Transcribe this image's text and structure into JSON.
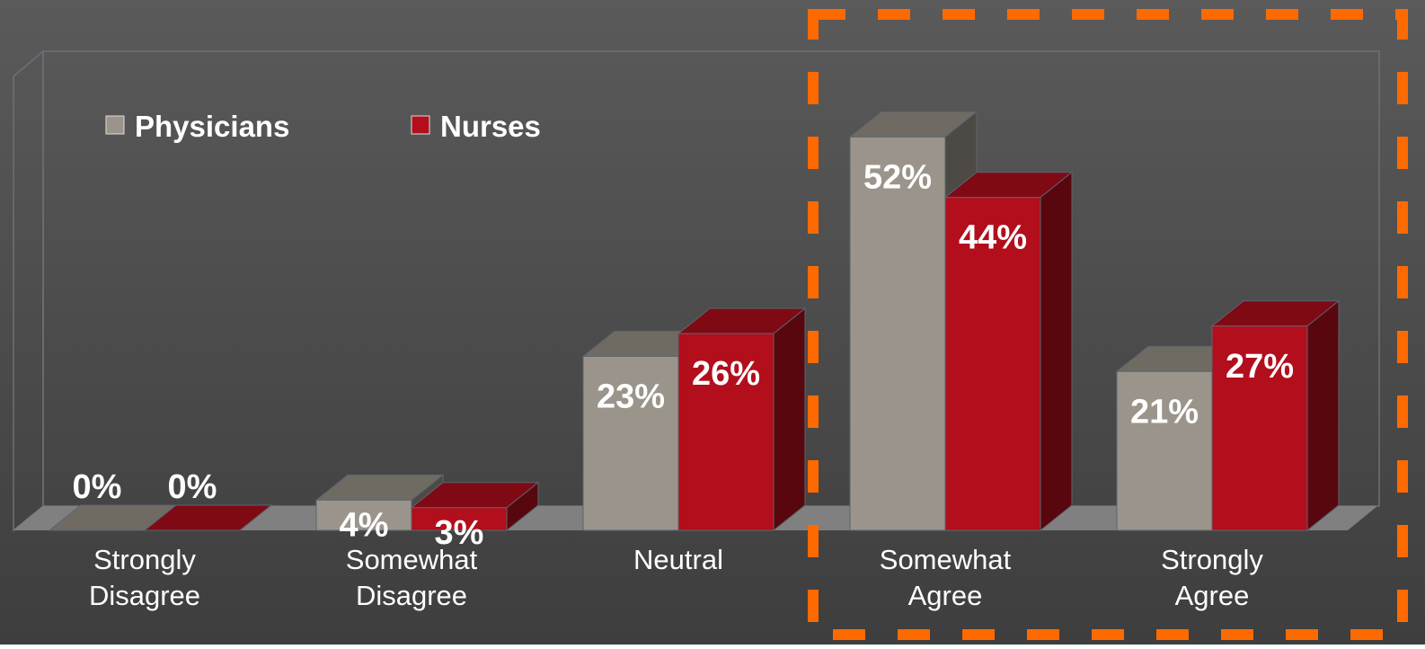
{
  "chart_data": {
    "type": "bar3d",
    "categories": [
      "Strongly Disagree",
      "Somewhat Disagree",
      "Neutral",
      "Somewhat Agree",
      "Strongly Agree"
    ],
    "series": [
      {
        "name": "Physicians",
        "color": "#9a948a",
        "values": [
          0,
          4,
          23,
          52,
          21
        ],
        "value_labels": [
          "0%",
          "4%",
          "23%",
          "52%",
          "21%"
        ]
      },
      {
        "name": "Nurses",
        "color": "#b20e1c",
        "values": [
          0,
          3,
          26,
          44,
          27
        ],
        "value_labels": [
          "0%",
          "3%",
          "26%",
          "44%",
          "27%"
        ]
      }
    ],
    "ylim": [
      0,
      60
    ],
    "legend": "top-left"
  }
}
